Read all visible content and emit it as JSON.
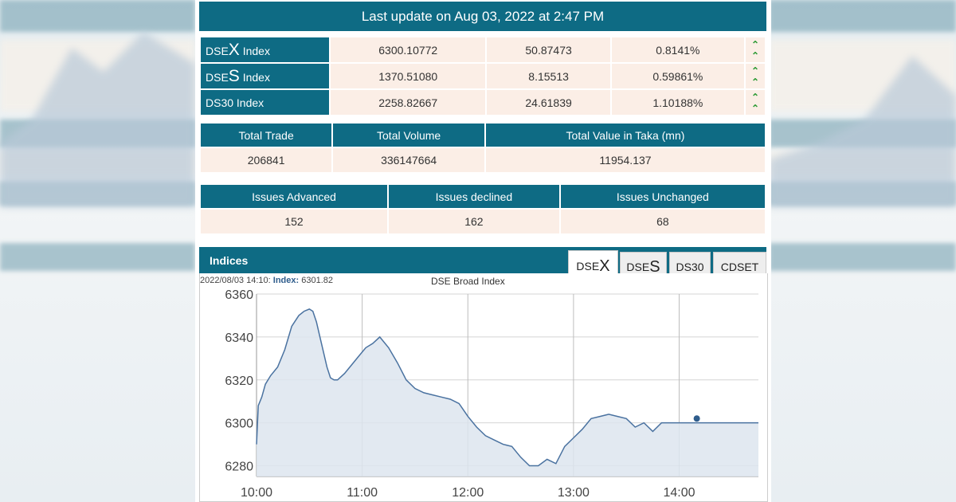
{
  "last_update": "Last update on Aug 03, 2022 at 2:47 PM",
  "indices": [
    {
      "prefix": "DSE",
      "letter": "X",
      "suffix": " Index",
      "value": "6300.10772",
      "change": "50.87473",
      "percent": "0.8141%",
      "trend": "up"
    },
    {
      "prefix": "DSE",
      "letter": "S",
      "suffix": " Index",
      "value": "1370.51080",
      "change": "8.15513",
      "percent": "0.59861%",
      "trend": "up"
    },
    {
      "prefix": "DS30",
      "letter": "",
      "suffix": " Index",
      "value": "2258.82667",
      "change": "24.61839",
      "percent": "1.10188%",
      "trend": "up"
    }
  ],
  "trade": {
    "headers": [
      "Total Trade",
      "Total Volume",
      "Total Value in Taka (mn)"
    ],
    "values": [
      "206841",
      "336147664",
      "11954.137"
    ]
  },
  "issues": {
    "headers": [
      "Issues Advanced",
      "Issues declined",
      "Issues Unchanged"
    ],
    "values": [
      "152",
      "162",
      "68"
    ]
  },
  "indices_panel": {
    "title": "Indices",
    "tabs": [
      {
        "prefix": "DSE",
        "letter": "X",
        "active": true
      },
      {
        "prefix": "DSE",
        "letter": "S",
        "active": false
      },
      {
        "prefix": "DS30",
        "letter": "",
        "active": false
      },
      {
        "prefix": "CDSET",
        "letter": "",
        "active": false
      }
    ],
    "stamp_time": "2022/08/03 14:10:",
    "stamp_label": "Index:",
    "stamp_value": "6301.82"
  },
  "colors": {
    "header": "#0e6b84",
    "cell": "#fbeee6",
    "up_arrow": "#2b9a33",
    "line": "#4a72a0",
    "fill": "#dde5ee"
  },
  "chart_data": {
    "type": "area",
    "title": "DSE Broad Index",
    "xlabel": "",
    "ylabel": "",
    "x_ticks": [
      "10:00",
      "11:00",
      "12:00",
      "13:00",
      "14:00"
    ],
    "y_ticks": [
      6280,
      6300,
      6320,
      6340,
      6360
    ],
    "ylim": [
      6275,
      6360
    ],
    "xlim_minutes": [
      600,
      885
    ],
    "grid": true,
    "series": [
      {
        "x": [
          600,
          601,
          603,
          605,
          608,
          612,
          616,
          620,
          624,
          627,
          630,
          632,
          634,
          636,
          638,
          640,
          642,
          644,
          646,
          650,
          654,
          658,
          662,
          666,
          670,
          675,
          680,
          685,
          690,
          695,
          700,
          705,
          710,
          715,
          720,
          725,
          730,
          735,
          740,
          745,
          750,
          755,
          760,
          765,
          770,
          775,
          780,
          785,
          790,
          795,
          800,
          805,
          810,
          815,
          820,
          825,
          830,
          835,
          840,
          845,
          850,
          855,
          860,
          865,
          870,
          875,
          880,
          885
        ],
        "values": [
          6290,
          6308,
          6312,
          6318,
          6322,
          6326,
          6334,
          6345,
          6350,
          6352,
          6353,
          6352,
          6347,
          6340,
          6333,
          6326,
          6321,
          6320,
          6320,
          6323,
          6327,
          6331,
          6335,
          6337,
          6340,
          6335,
          6328,
          6320,
          6316,
          6314,
          6313,
          6312,
          6311,
          6309,
          6303,
          6298,
          6294,
          6292,
          6290,
          6289,
          6284,
          6280,
          6280,
          6283,
          6281,
          6289,
          6293,
          6297,
          6302,
          6303,
          6304,
          6303,
          6302,
          6298,
          6300,
          6296,
          6300,
          6300,
          6300,
          6300,
          6300,
          6300,
          6300,
          6300,
          6300,
          6300,
          6300,
          6300
        ],
        "marker": {
          "x": 850,
          "value": 6302
        }
      }
    ]
  }
}
